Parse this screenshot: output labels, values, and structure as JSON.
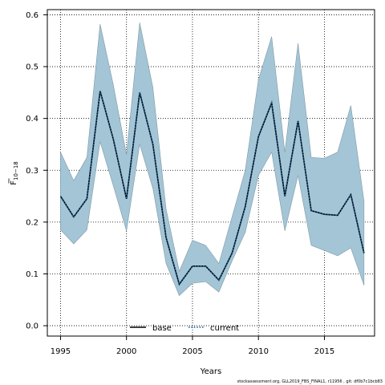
{
  "chart_data": {
    "type": "line",
    "xlabel": "Years",
    "ylabel": "F",
    "ylabel_subscript": "10−18",
    "xlim": [
      1994.0,
      2018.8
    ],
    "ylim": [
      -0.02,
      0.61
    ],
    "x_ticks": [
      1995,
      2000,
      2005,
      2010,
      2015
    ],
    "y_ticks": [
      0.0,
      0.1,
      0.2,
      0.3,
      0.4,
      0.5,
      0.6
    ],
    "grid": true,
    "legend_position": "bottom-center",
    "x": [
      1995,
      1996,
      1997,
      1998,
      1999,
      2000,
      2001,
      2002,
      2003,
      2004,
      2005,
      2006,
      2007,
      2008,
      2009,
      2010,
      2011,
      2012,
      2013,
      2014,
      2015,
      2016,
      2017,
      2018
    ],
    "band": {
      "color": "#a3c5d6",
      "edge_color": "#7f9aa8",
      "lower": [
        0.185,
        0.158,
        0.185,
        0.355,
        0.27,
        0.183,
        0.35,
        0.265,
        0.12,
        0.058,
        0.082,
        0.085,
        0.065,
        0.125,
        0.18,
        0.29,
        0.335,
        0.183,
        0.29,
        0.155,
        0.145,
        0.135,
        0.15,
        0.078
      ],
      "upper": [
        0.335,
        0.28,
        0.325,
        0.582,
        0.465,
        0.33,
        0.585,
        0.46,
        0.225,
        0.105,
        0.165,
        0.155,
        0.12,
        0.21,
        0.3,
        0.475,
        0.558,
        0.335,
        0.545,
        0.325,
        0.323,
        0.335,
        0.425,
        0.24
      ]
    },
    "series": [
      {
        "name": "base",
        "style": "solid",
        "color": "#000000",
        "values": [
          0.25,
          0.21,
          0.245,
          0.453,
          0.36,
          0.245,
          0.45,
          0.35,
          0.17,
          0.08,
          0.115,
          0.115,
          0.088,
          0.14,
          0.23,
          0.365,
          0.43,
          0.25,
          0.395,
          0.222,
          0.215,
          0.213,
          0.253,
          0.14
        ]
      },
      {
        "name": "current",
        "style": "dotted",
        "color": "#1f5f99",
        "values": [
          0.25,
          0.21,
          0.245,
          0.453,
          0.36,
          0.245,
          0.45,
          0.35,
          0.17,
          0.08,
          0.115,
          0.115,
          0.088,
          0.14,
          0.23,
          0.365,
          0.43,
          0.25,
          0.395,
          0.222,
          0.215,
          0.213,
          0.253,
          0.14
        ]
      }
    ]
  },
  "footnote": "stockassessment.org, GLL2019_FBS_FINAL1, r11956 , git: df0b7c1bcb83"
}
